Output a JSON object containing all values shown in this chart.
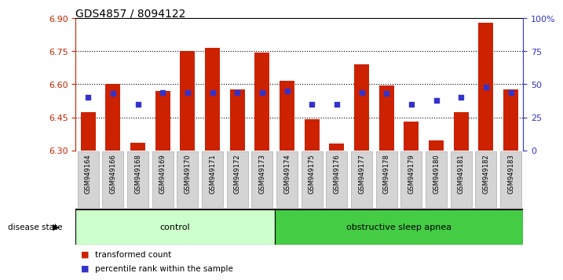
{
  "title": "GDS4857 / 8094122",
  "samples": [
    "GSM949164",
    "GSM949166",
    "GSM949168",
    "GSM949169",
    "GSM949170",
    "GSM949171",
    "GSM949172",
    "GSM949173",
    "GSM949174",
    "GSM949175",
    "GSM949176",
    "GSM949177",
    "GSM949178",
    "GSM949179",
    "GSM949180",
    "GSM949181",
    "GSM949182",
    "GSM949183"
  ],
  "red_values": [
    6.475,
    6.6,
    6.335,
    6.57,
    6.75,
    6.765,
    6.575,
    6.745,
    6.615,
    6.44,
    6.33,
    6.69,
    6.595,
    6.43,
    6.345,
    6.475,
    6.88,
    6.575
  ],
  "blue_percentiles": [
    40,
    43,
    35,
    44,
    44,
    44,
    44,
    44,
    45,
    35,
    35,
    44,
    43,
    35,
    38,
    40,
    48,
    44
  ],
  "ymin": 6.3,
  "ymax": 6.9,
  "yticks_left": [
    6.3,
    6.45,
    6.6,
    6.75,
    6.9
  ],
  "yticks_right": [
    0,
    25,
    50,
    75,
    100
  ],
  "grid_values": [
    6.45,
    6.6,
    6.75
  ],
  "bar_color": "#cc2200",
  "blue_color": "#3333cc",
  "bar_width": 0.6,
  "control_count": 8,
  "groups": [
    {
      "label": "control",
      "start": 0,
      "end": 8,
      "color": "#ccffcc"
    },
    {
      "label": "obstructive sleep apnea",
      "start": 8,
      "end": 18,
      "color": "#44cc44"
    }
  ],
  "legend_items": [
    {
      "label": "transformed count",
      "color": "#cc2200"
    },
    {
      "label": "percentile rank within the sample",
      "color": "#3333cc"
    }
  ],
  "disease_state_label": "disease state",
  "bg_color": "#ffffff",
  "title_fontsize": 10,
  "label_color_left": "#cc2200",
  "label_color_right": "#3333cc",
  "xtick_bg": "#d0d0d0"
}
